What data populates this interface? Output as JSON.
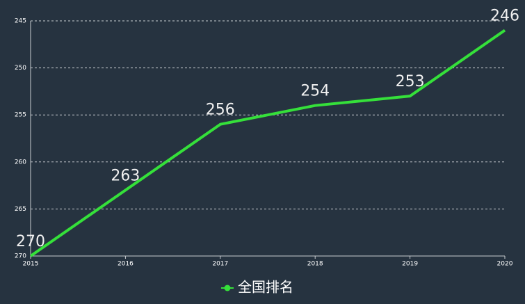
{
  "chart_data": {
    "type": "line",
    "categories": [
      "2015",
      "2016",
      "2017",
      "2018",
      "2019",
      "2020"
    ],
    "series": [
      {
        "name": "全国排名",
        "color": "#35e03a",
        "values": [
          270,
          263,
          256,
          254,
          253,
          246
        ]
      }
    ],
    "ylim": [
      245,
      270
    ],
    "y_inverted": true,
    "yticks": [
      245,
      250,
      255,
      260,
      265,
      270
    ],
    "grid": true,
    "legend": "bottom"
  }
}
